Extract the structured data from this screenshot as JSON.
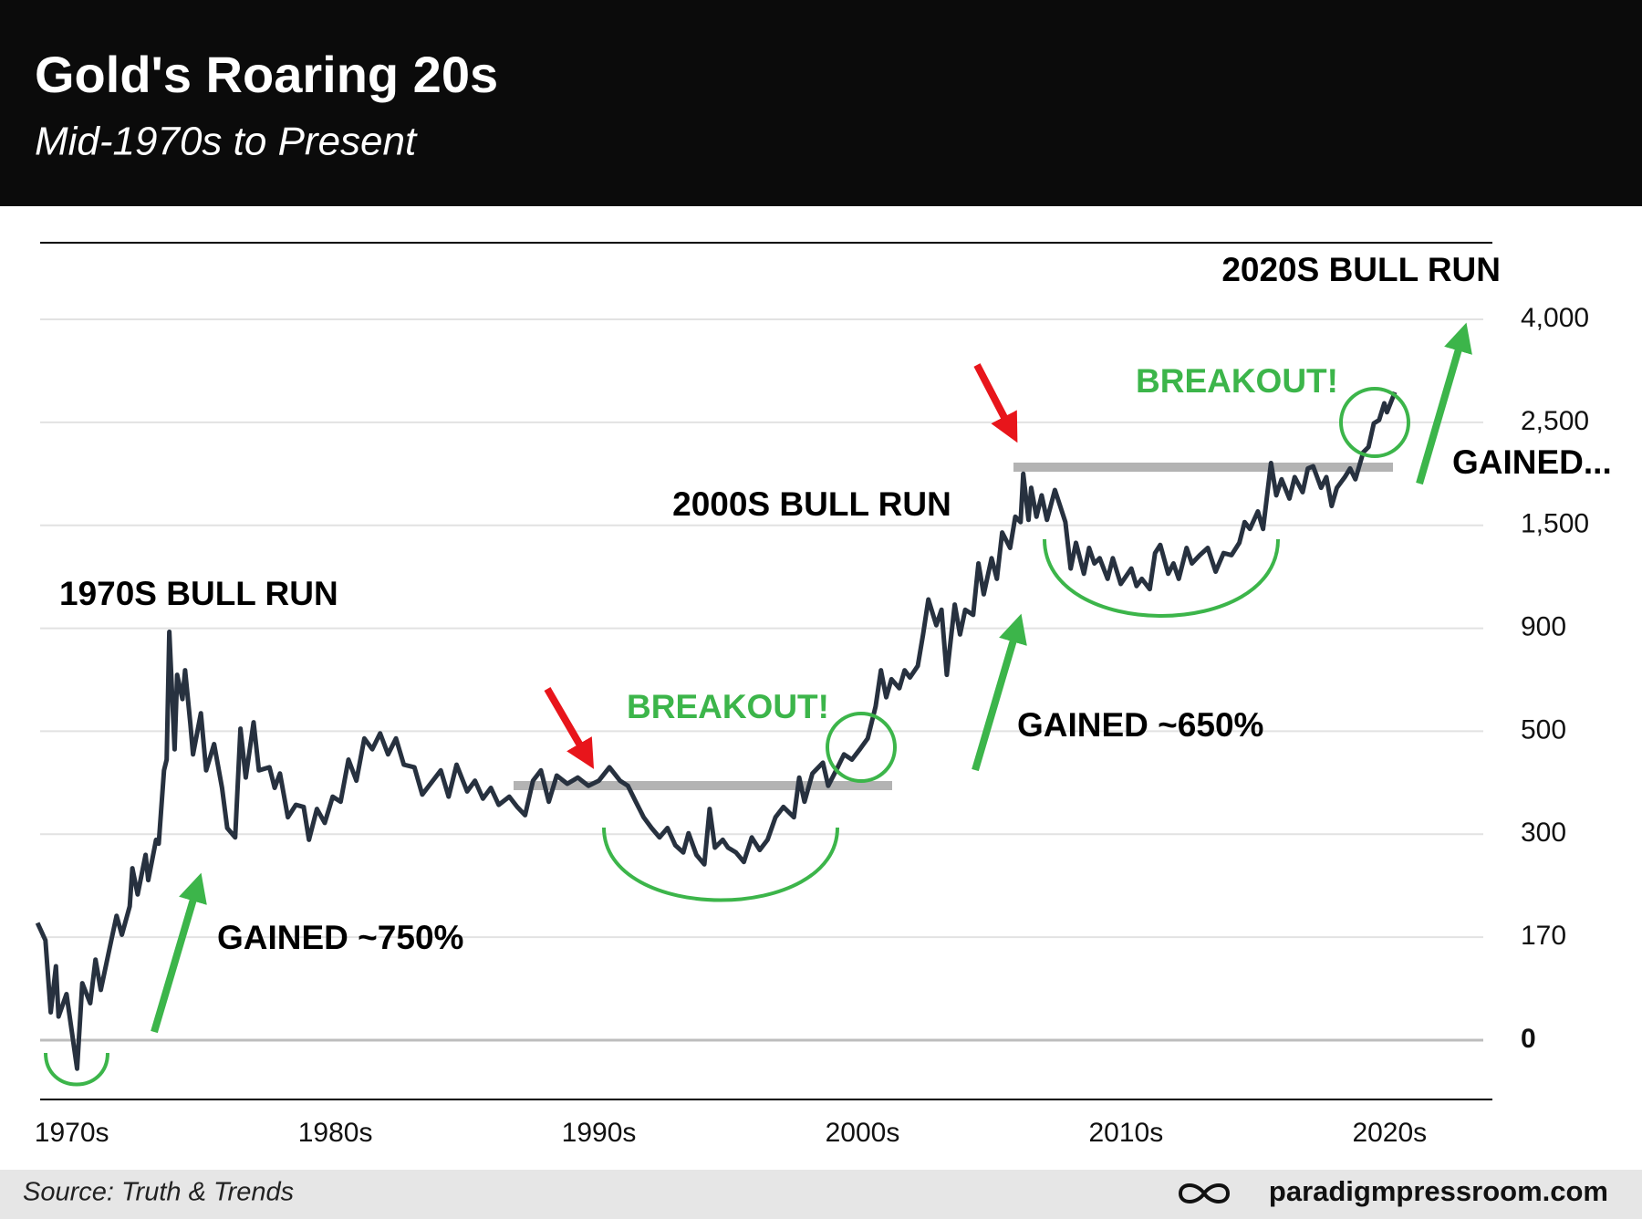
{
  "chart_data": {
    "type": "line",
    "title": "Gold's Roaring 20s",
    "subtitle": "Mid-1970s to Present",
    "x": [
      1968.7,
      1969.0,
      1969.2,
      1969.4,
      1969.5,
      1969.8,
      1970.2,
      1970.4,
      1970.7,
      1970.9,
      1971.1,
      1971.5,
      1971.7,
      1971.9,
      1972.2,
      1972.3,
      1972.5,
      1972.8,
      1972.9,
      1973.2,
      1973.3,
      1973.5,
      1973.6,
      1973.7,
      1973.9,
      1974.0,
      1974.2,
      1974.3,
      1974.5,
      1974.6,
      1974.9,
      1975.1,
      1975.4,
      1975.7,
      1975.9,
      1976.2,
      1976.4,
      1976.6,
      1976.9,
      1977.1,
      1977.5,
      1977.7,
      1977.9,
      1978.2,
      1978.5,
      1978.8,
      1979.0,
      1979.3,
      1979.6,
      1979.9,
      1980.2,
      1980.5,
      1980.8,
      1981.1,
      1981.4,
      1981.7,
      1982.0,
      1982.3,
      1982.6,
      1983.0,
      1983.3,
      1983.7,
      1984.0,
      1984.3,
      1984.6,
      1985.0,
      1985.3,
      1985.6,
      1985.9,
      1986.2,
      1986.6,
      1986.9,
      1987.2,
      1987.5,
      1987.8,
      1988.1,
      1988.4,
      1988.8,
      1989.2,
      1989.6,
      1990.0,
      1990.4,
      1990.8,
      1991.1,
      1991.4,
      1991.7,
      1992.0,
      1992.3,
      1992.6,
      1992.9,
      1993.2,
      1993.4,
      1993.7,
      1994.0,
      1994.2,
      1994.4,
      1994.7,
      1994.9,
      1995.2,
      1995.5,
      1995.8,
      1996.1,
      1996.4,
      1996.7,
      1997.0,
      1997.4,
      1997.6,
      1997.8,
      1998.1,
      1998.5,
      1998.7,
      1999.0,
      1999.3,
      1999.6,
      1999.9,
      2000.2,
      2000.5,
      2000.7,
      2000.9,
      2001.1,
      2001.4,
      2001.6,
      2001.8,
      2002.1,
      2002.3,
      2002.5,
      2002.8,
      2003.0,
      2003.2,
      2003.5,
      2003.7,
      2003.9,
      2004.2,
      2004.4,
      2004.6,
      2004.9,
      2005.1,
      2005.3,
      2005.6,
      2005.8,
      2006.0,
      2006.1,
      2006.3,
      2006.4,
      2006.6,
      2006.8,
      2007.0,
      2007.3,
      2007.5,
      2007.7,
      2007.9,
      2008.1,
      2008.4,
      2008.6,
      2008.8,
      2009.0,
      2009.3,
      2009.5,
      2009.8,
      2010.2,
      2010.4,
      2010.6,
      2010.9,
      2011.1,
      2011.3,
      2011.6,
      2011.8,
      2012.0,
      2012.3,
      2012.5,
      2012.8,
      2013.1,
      2013.4,
      2013.7,
      2014.0,
      2014.3,
      2014.5,
      2014.7,
      2015.0,
      2015.2,
      2015.5,
      2015.7,
      2015.9,
      2016.2,
      2016.4,
      2016.7,
      2016.9,
      2017.1,
      2017.4,
      2017.6,
      2017.8,
      2018.0,
      2018.3,
      2018.5,
      2018.7,
      2019.0,
      2019.2,
      2019.4,
      2019.6,
      2019.8,
      2019.9,
      2020.2
    ],
    "values": [
      188,
      165,
      46,
      122,
      39,
      76,
      -48,
      94,
      61,
      133,
      83,
      165,
      197,
      173,
      209,
      257,
      224,
      274,
      242,
      293,
      288,
      424,
      445,
      886,
      465,
      719,
      625,
      737,
      528,
      455,
      570,
      424,
      475,
      390,
      312,
      296,
      510,
      410,
      535,
      424,
      430,
      390,
      418,
      333,
      357,
      353,
      293,
      349,
      322,
      373,
      363,
      445,
      404,
      486,
      465,
      496,
      455,
      486,
      435,
      430,
      377,
      404,
      424,
      373,
      435,
      383,
      404,
      369,
      390,
      357,
      373,
      353,
      337,
      404,
      424,
      363,
      414,
      398,
      410,
      394,
      404,
      430,
      404,
      394,
      363,
      333,
      312,
      296,
      312,
      286,
      277,
      302,
      274,
      262,
      349,
      283,
      293,
      283,
      277,
      265,
      296,
      280,
      293,
      333,
      353,
      333,
      410,
      363,
      418,
      439,
      394,
      424,
      455,
      445,
      465,
      486,
      597,
      737,
      632,
      702,
      667,
      737,
      709,
      754,
      876,
      1068,
      918,
      1008,
      719,
      1038,
      876,
      1008,
      978,
      1278,
      1098,
      1308,
      1188,
      1458,
      1368,
      1583,
      1531,
      2000,
      1552,
      1864,
      1583,
      1791,
      1552,
      1843,
      1687,
      1531,
      1248,
      1398,
      1218,
      1368,
      1278,
      1308,
      1188,
      1308,
      1158,
      1248,
      1146,
      1188,
      1128,
      1338,
      1386,
      1218,
      1278,
      1188,
      1368,
      1278,
      1326,
      1368,
      1230,
      1338,
      1326,
      1398,
      1531,
      1479,
      1635,
      1479,
      2104,
      1791,
      1947,
      1760,
      1968,
      1822,
      2052,
      2073,
      1864,
      1968,
      1687,
      1864,
      1968,
      2052,
      1947,
      2208,
      2260,
      2490,
      2533,
      2777,
      2647,
      2940
    ],
    "color": "#27313f",
    "xlim": [
      1968.8,
      2023.9
    ],
    "xticks": [
      {
        "value": 1970,
        "label": "1970s"
      },
      {
        "value": 1980,
        "label": "1980s"
      },
      {
        "value": 1990,
        "label": "1990s"
      },
      {
        "value": 2000,
        "label": "2000s"
      },
      {
        "value": 2010,
        "label": "2010s"
      },
      {
        "value": 2020,
        "label": "2020s"
      }
    ],
    "ylim": [
      -100,
      5100
    ],
    "yticks": [
      0,
      170,
      300,
      500,
      900,
      {
        "value": 1500,
        "label": "1,500"
      },
      {
        "value": 2500,
        "label": "2,500"
      },
      {
        "value": 4000,
        "label": "4,000"
      }
    ],
    "grid": true,
    "annotations": [
      "2020S BULL RUN",
      "BREAKOUT!",
      "GAINED...",
      "2000S BULL RUN",
      "1970S BULL RUN",
      "BREAKOUT!",
      "GAINED ~650%",
      "GAINED ~750%"
    ],
    "source": "Source: Truth & Trends",
    "brand": "paradigmpressroom.com"
  }
}
